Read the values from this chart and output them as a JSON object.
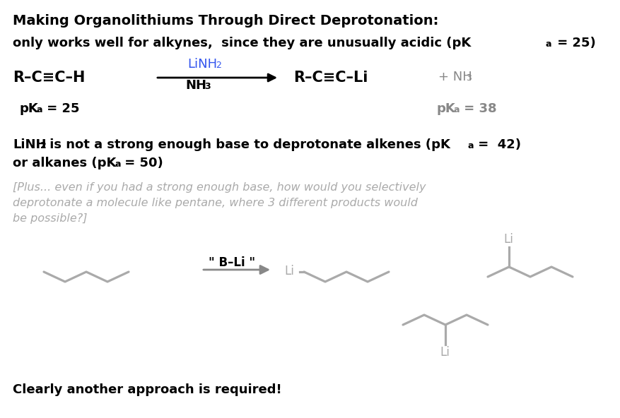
{
  "bg_color": "#ffffff",
  "black_color": "#000000",
  "blue_color": "#3355ee",
  "gray_color": "#aaaaaa",
  "dark_gray": "#888888",
  "arrow_color": "#999999",
  "struct_color": "#aaaaaa",
  "title1": "Making Organolithiums Through Direct Deprotonation:",
  "gray_text_line1": "[Plus... even if you had a strong enough base, how would you selectively",
  "gray_text_line2": "deprotonate a molecule like pentane, where 3 different products would",
  "gray_text_line3": "be possible?]",
  "bottom_bold": "Clearly another approach is required!"
}
